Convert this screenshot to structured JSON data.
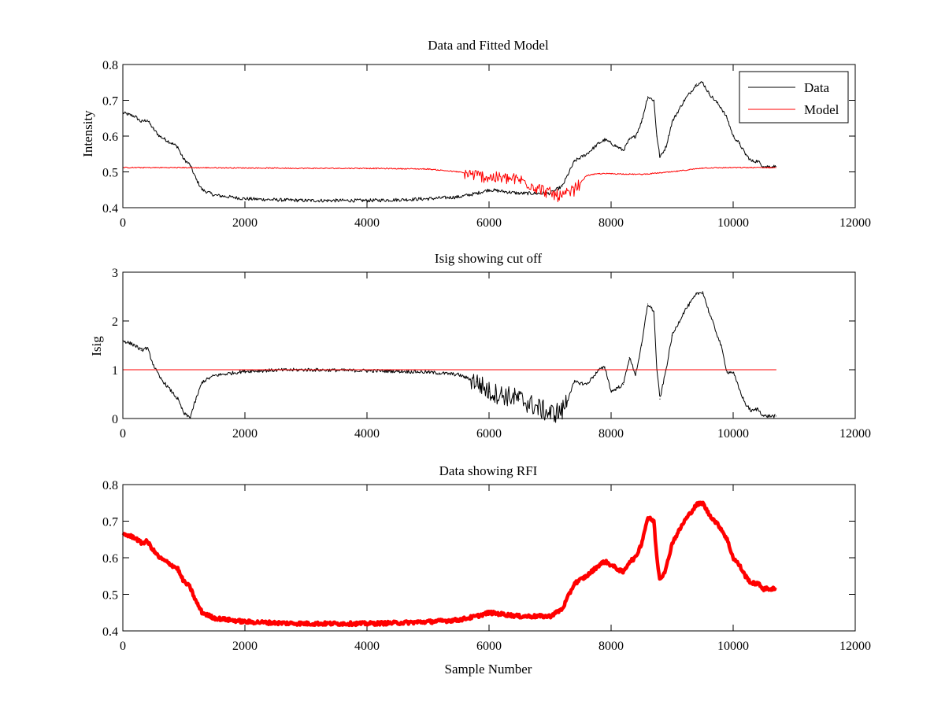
{
  "chart_data": [
    {
      "type": "line",
      "title": "Data and Fitted Model",
      "xlabel": "",
      "ylabel": "Intensity",
      "xlim": [
        0,
        12000
      ],
      "ylim": [
        0.4,
        0.8
      ],
      "xticks": [
        "0",
        "2000",
        "4000",
        "6000",
        "8000",
        "10000",
        "12000"
      ],
      "yticks": [
        "0.4",
        "0.5",
        "0.6",
        "0.7",
        "0.8"
      ],
      "legend": "top-right",
      "series": [
        {
          "name": "Data",
          "color": "#000000",
          "x": [
            0,
            100,
            200,
            300,
            400,
            500,
            600,
            700,
            800,
            900,
            950,
            1000,
            1100,
            1200,
            1300,
            1500,
            2000,
            2500,
            3000,
            3500,
            4000,
            4500,
            5000,
            5500,
            5800,
            6000,
            6500,
            7000,
            7200,
            7400,
            7600,
            7800,
            7900,
            8000,
            8200,
            8300,
            8400,
            8500,
            8600,
            8700,
            8750,
            8800,
            8900,
            9000,
            9200,
            9400,
            9500,
            9600,
            9800,
            9900,
            10000,
            10100,
            10200,
            10300,
            10400,
            10500,
            10700
          ],
          "values": [
            0.665,
            0.66,
            0.655,
            0.64,
            0.645,
            0.62,
            0.6,
            0.59,
            0.58,
            0.57,
            0.55,
            0.535,
            0.52,
            0.48,
            0.45,
            0.435,
            0.425,
            0.422,
            0.42,
            0.42,
            0.42,
            0.422,
            0.425,
            0.43,
            0.44,
            0.45,
            0.44,
            0.44,
            0.46,
            0.53,
            0.55,
            0.58,
            0.59,
            0.58,
            0.56,
            0.59,
            0.6,
            0.64,
            0.71,
            0.7,
            0.6,
            0.54,
            0.57,
            0.64,
            0.7,
            0.745,
            0.75,
            0.72,
            0.68,
            0.65,
            0.6,
            0.58,
            0.55,
            0.53,
            0.53,
            0.515,
            0.515
          ]
        },
        {
          "name": "Model",
          "color": "#ff0000",
          "x": [
            0,
            1000,
            2000,
            3000,
            4000,
            5000,
            5500,
            5800,
            6000,
            6500,
            7000,
            7200,
            7400,
            7600,
            7800,
            8000,
            8500,
            9000,
            9500,
            10000,
            10700
          ],
          "values": [
            0.512,
            0.512,
            0.511,
            0.51,
            0.51,
            0.508,
            0.5,
            0.49,
            0.485,
            0.478,
            0.44,
            0.43,
            0.45,
            0.49,
            0.495,
            0.495,
            0.493,
            0.5,
            0.511,
            0.512,
            0.512
          ]
        }
      ]
    },
    {
      "type": "line",
      "title": "Isig showing cut off",
      "xlabel": "",
      "ylabel": "Isig",
      "xlim": [
        0,
        12000
      ],
      "ylim": [
        0,
        3
      ],
      "xticks": [
        "0",
        "2000",
        "4000",
        "6000",
        "8000",
        "10000",
        "12000"
      ],
      "yticks": [
        "0",
        "1",
        "2",
        "3"
      ],
      "series": [
        {
          "color": "#000000",
          "x": [
            0,
            100,
            200,
            300,
            400,
            500,
            600,
            700,
            800,
            900,
            1000,
            1100,
            1200,
            1300,
            1500,
            2000,
            2500,
            3000,
            3500,
            4000,
            4500,
            5000,
            5500,
            5800,
            6000,
            6500,
            7000,
            7200,
            7400,
            7600,
            7800,
            7900,
            8000,
            8200,
            8300,
            8400,
            8500,
            8600,
            8700,
            8750,
            8800,
            8900,
            9000,
            9200,
            9400,
            9500,
            9600,
            9800,
            9900,
            10000,
            10100,
            10200,
            10300,
            10400,
            10500,
            10700
          ],
          "values": [
            1.6,
            1.55,
            1.5,
            1.4,
            1.45,
            1.1,
            0.85,
            0.7,
            0.55,
            0.4,
            0.1,
            0.02,
            0.4,
            0.75,
            0.88,
            0.97,
            0.99,
            1.0,
            0.99,
            0.98,
            0.97,
            0.95,
            0.9,
            0.75,
            0.55,
            0.4,
            0.1,
            0.15,
            0.75,
            0.7,
            1.0,
            1.05,
            0.55,
            0.7,
            1.25,
            0.9,
            1.5,
            2.35,
            2.2,
            1.0,
            0.4,
            1.0,
            1.7,
            2.2,
            2.55,
            2.6,
            2.2,
            1.5,
            0.95,
            0.95,
            0.6,
            0.3,
            0.15,
            0.2,
            0.05,
            0.05
          ]
        },
        {
          "color": "#ff0000",
          "x": [
            0,
            10700
          ],
          "values": [
            1.0,
            1.0
          ]
        }
      ]
    },
    {
      "type": "scatter",
      "title": "Data showing RFI",
      "xlabel": "Sample Number",
      "ylabel": "",
      "xlim": [
        0,
        12000
      ],
      "ylim": [
        0.4,
        0.8
      ],
      "xticks": [
        "0",
        "2000",
        "4000",
        "6000",
        "8000",
        "10000",
        "12000"
      ],
      "yticks": [
        "0.4",
        "0.5",
        "0.6",
        "0.7",
        "0.8"
      ],
      "series": [
        {
          "color": "#ff0000",
          "x": [
            0,
            100,
            200,
            300,
            400,
            500,
            600,
            700,
            800,
            900,
            950,
            1000,
            1100,
            1200,
            1300,
            1500,
            2000,
            2500,
            3000,
            3500,
            4000,
            4500,
            5000,
            5500,
            5800,
            6000,
            6500,
            7000,
            7200,
            7400,
            7600,
            7800,
            7900,
            8000,
            8200,
            8300,
            8400,
            8500,
            8600,
            8700,
            8750,
            8800,
            8900,
            9000,
            9200,
            9400,
            9500,
            9600,
            9800,
            9900,
            10000,
            10100,
            10200,
            10300,
            10400,
            10500,
            10700
          ],
          "values": [
            0.665,
            0.66,
            0.655,
            0.64,
            0.645,
            0.62,
            0.6,
            0.59,
            0.58,
            0.57,
            0.55,
            0.535,
            0.52,
            0.48,
            0.45,
            0.435,
            0.425,
            0.422,
            0.42,
            0.42,
            0.42,
            0.422,
            0.425,
            0.43,
            0.44,
            0.45,
            0.44,
            0.44,
            0.46,
            0.53,
            0.55,
            0.58,
            0.59,
            0.58,
            0.56,
            0.59,
            0.6,
            0.64,
            0.71,
            0.7,
            0.6,
            0.54,
            0.57,
            0.64,
            0.7,
            0.745,
            0.75,
            0.72,
            0.68,
            0.65,
            0.6,
            0.58,
            0.55,
            0.53,
            0.53,
            0.515,
            0.515
          ]
        }
      ]
    }
  ]
}
